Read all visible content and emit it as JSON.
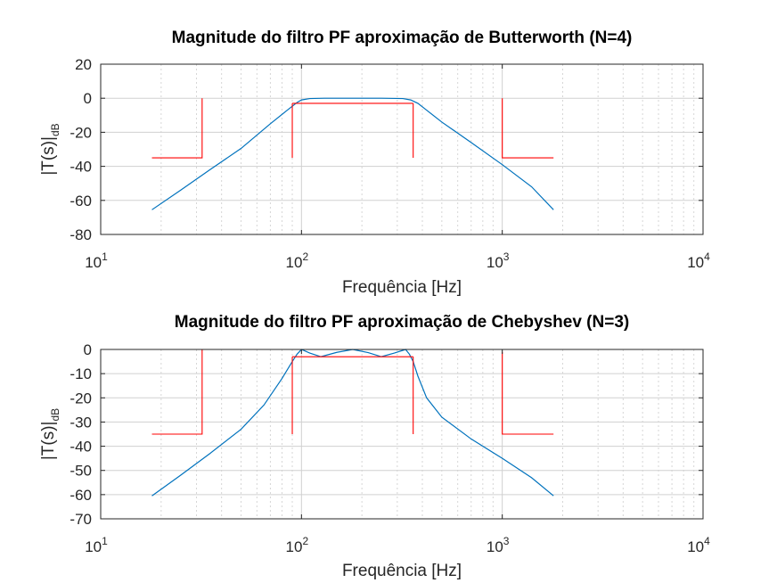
{
  "chart_data": [
    {
      "type": "line",
      "title": "Magnitude do filtro PF aproximação de Butterworth (N=4)",
      "xlabel": "Frequência [Hz]",
      "ylabel": "|T(s)|",
      "ylabel_sub": "dB",
      "xscale": "log",
      "xlim": [
        10,
        10000
      ],
      "ylim": [
        -80,
        20
      ],
      "yticks": [
        20,
        0,
        -20,
        -40,
        -60,
        -80
      ],
      "xticks": [
        10,
        100,
        1000,
        10000
      ],
      "xtick_base": "10",
      "xtick_exp": [
        "1",
        "2",
        "3",
        "4"
      ],
      "grid": true,
      "series": [
        {
          "color": "#0072BD",
          "x": [
            18,
            25,
            35,
            50,
            70,
            85,
            95,
            100,
            110,
            130,
            180,
            250,
            320,
            350,
            380,
            420,
            500,
            700,
            1000,
            1400,
            1800
          ],
          "y": [
            -65.5,
            -54,
            -42,
            -29.5,
            -15,
            -7,
            -2.5,
            -1,
            -0.2,
            0,
            0,
            0,
            -0.2,
            -1,
            -3,
            -7,
            -14,
            -26,
            -39,
            -52,
            -65.5
          ]
        },
        {
          "color": "#FF0000",
          "segments": [
            {
              "x": [
                18,
                32,
                32
              ],
              "y": [
                -35,
                -35,
                0
              ]
            },
            {
              "x": [
                90,
                90
              ],
              "y": [
                -35,
                -3
              ]
            },
            {
              "x": [
                90,
                360
              ],
              "y": [
                -3,
                -3
              ]
            },
            {
              "x": [
                360,
                360
              ],
              "y": [
                -3,
                -35
              ]
            },
            {
              "x": [
                1000,
                1000,
                1800
              ],
              "y": [
                0,
                -35,
                -35
              ]
            }
          ]
        }
      ]
    },
    {
      "type": "line",
      "title": "Magnitude do filtro PF aproximação de Chebyshev (N=3)",
      "xlabel": "Frequência [Hz]",
      "ylabel": "|T(s)|",
      "ylabel_sub": "dB",
      "xscale": "log",
      "xlim": [
        10,
        10000
      ],
      "ylim": [
        -70,
        0
      ],
      "yticks": [
        0,
        -10,
        -20,
        -30,
        -40,
        -50,
        -60,
        -70
      ],
      "xticks": [
        10,
        100,
        1000,
        10000
      ],
      "xtick_base": "10",
      "xtick_exp": [
        "1",
        "2",
        "3",
        "4"
      ],
      "grid": true,
      "series": [
        {
          "color": "#0072BD",
          "x": [
            18,
            25,
            35,
            50,
            65,
            80,
            90,
            95,
            100,
            110,
            125,
            150,
            180,
            215,
            250,
            290,
            330,
            345,
            360,
            380,
            420,
            500,
            700,
            1000,
            1400,
            1800
          ],
          "y": [
            -60.5,
            -52,
            -43,
            -33,
            -23,
            -12,
            -5,
            -2,
            0,
            -1.5,
            -3,
            -1.2,
            0,
            -1.3,
            -3,
            -1.5,
            0,
            -2,
            -5,
            -11,
            -20,
            -28,
            -37,
            -45,
            -53,
            -60.5
          ]
        },
        {
          "color": "#FF0000",
          "segments": [
            {
              "x": [
                18,
                32,
                32
              ],
              "y": [
                -35,
                -35,
                0
              ]
            },
            {
              "x": [
                90,
                90
              ],
              "y": [
                -35,
                -3
              ]
            },
            {
              "x": [
                90,
                360
              ],
              "y": [
                -3,
                -3
              ]
            },
            {
              "x": [
                360,
                360
              ],
              "y": [
                -3,
                -35
              ]
            },
            {
              "x": [
                1000,
                1000,
                1800
              ],
              "y": [
                -1,
                -35,
                -35
              ]
            }
          ]
        }
      ]
    }
  ]
}
